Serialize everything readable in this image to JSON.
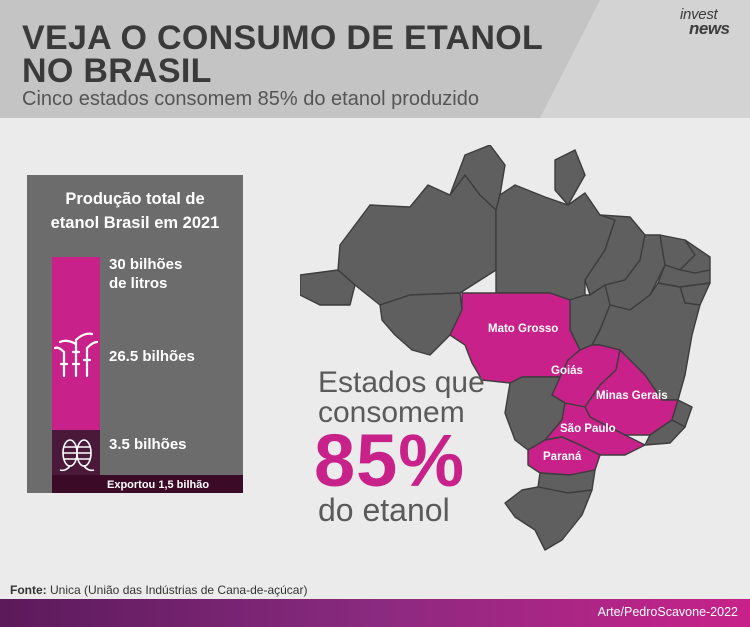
{
  "header": {
    "title": "VEJA O CONSUMO DE ETANOL\nNO BRASIL",
    "subtitle": "Cinco estados consomem 85% do etanol produzido",
    "logo_line1": "invest",
    "logo_line2": "news"
  },
  "card": {
    "title": "Produção total de\netanol Brasil em 2021",
    "total_label": "30 bilhões\nde litros",
    "domestic_label": "26.5 bilhões",
    "export_amount_label": "3.5 bilhões",
    "exported_note": "Exportou 1,5 bilhão",
    "values": {
      "total": 30,
      "domestic": 26.5,
      "other": 3.5,
      "exported": 1.5,
      "unit": "bilhões de litros"
    },
    "colors": {
      "domestic": "#c8228a",
      "other": "#4a1838",
      "exported": "#3a0a26"
    },
    "icons": [
      "sugarcane-icon",
      "corn-icon"
    ]
  },
  "map": {
    "highlight_color": "#c8228a",
    "base_color": "#5f5f5f",
    "states": [
      "Mato Grosso",
      "Goiás",
      "Minas Gerais",
      "São Paulo",
      "Paraná"
    ]
  },
  "overlay": {
    "line1": "Estados que",
    "line2": "consomem",
    "percent": "85%",
    "line3": "do etanol"
  },
  "footer": {
    "source_label": "Fonte:",
    "source_text": " Unica (União das Indústrias de Cana-de-açúcar)",
    "credit": "Arte/PedroScavone-2022"
  }
}
